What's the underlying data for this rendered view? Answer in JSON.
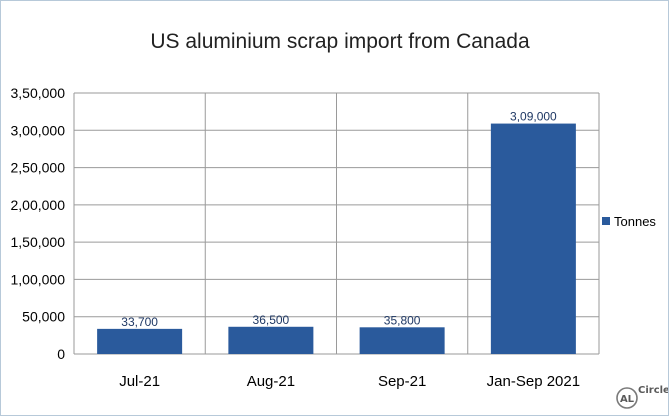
{
  "chart_data": {
    "type": "bar",
    "title": "US aluminium scrap import from Canada",
    "categories": [
      "Jul-21",
      "Aug-21",
      "Sep-21",
      "Jan-Sep 2021"
    ],
    "series": [
      {
        "name": "Tonnes",
        "values": [
          33700,
          36500,
          35800,
          309000
        ],
        "data_labels": [
          "33,700",
          "36,500",
          "35,800",
          "3,09,000"
        ],
        "color": "#2a5a9c"
      }
    ],
    "yticks": [
      0,
      50000,
      100000,
      150000,
      200000,
      250000,
      300000,
      350000
    ],
    "ytick_labels": [
      "0",
      "50,000",
      "1,00,000",
      "1,50,000",
      "2,00,000",
      "2,50,000",
      "3,00,000",
      "3,50,000"
    ],
    "ylim": [
      0,
      350000
    ],
    "grid": true,
    "legend_position": "right"
  },
  "branding": {
    "logo_letters": "AL",
    "logo_word": "Circle"
  }
}
